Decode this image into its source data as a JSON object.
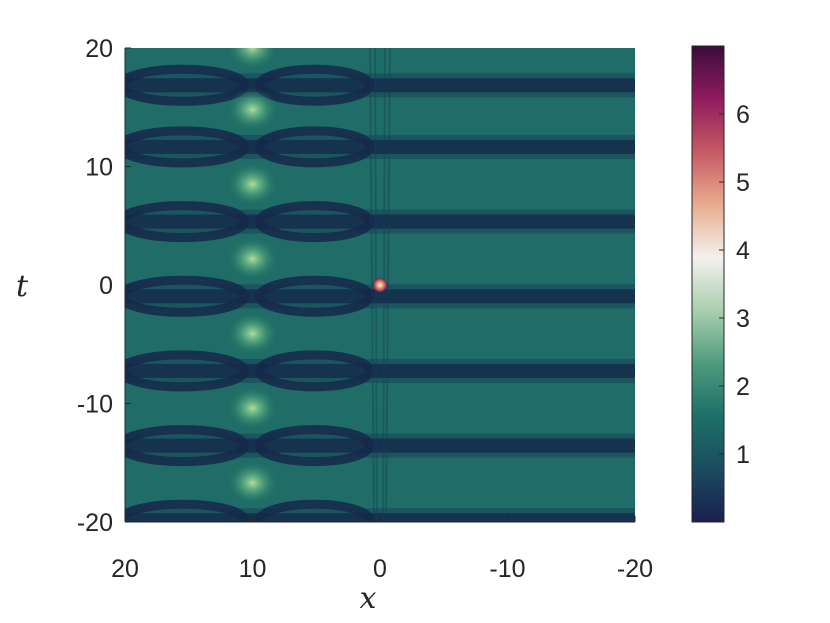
{
  "chart_data": {
    "type": "heatmap",
    "title": "",
    "xlabel": "x",
    "ylabel": "t",
    "xlim": [
      20,
      -20
    ],
    "ylim": [
      -20,
      20
    ],
    "x_reversed": true,
    "x_ticks": [
      20,
      10,
      0,
      -10,
      -20
    ],
    "x_tick_labels": [
      "20",
      "10",
      "0",
      "-10",
      "-20"
    ],
    "y_ticks": [
      20,
      10,
      0,
      -10,
      -20
    ],
    "y_tick_labels": [
      "20",
      "10",
      "0",
      "-10",
      "-20"
    ],
    "colorbar": {
      "range": [
        0,
        7
      ],
      "ticks": [
        1,
        2,
        3,
        4,
        5,
        6
      ],
      "tick_labels": [
        "1",
        "2",
        "3",
        "4",
        "5",
        "6"
      ],
      "colors": [
        "#1a1f4e",
        "#1b4b60",
        "#1d7068",
        "#4f9a7e",
        "#a9cfae",
        "#f3f1ee",
        "#e9ab8e",
        "#c65964",
        "#8f1b5e",
        "#3b0c3d"
      ]
    },
    "background_level": 1.1,
    "band_period": 6.3,
    "features": {
      "breather_line_x": 10,
      "peak_values": [
        {
          "x": 10,
          "t": 20,
          "value": 1.9
        },
        {
          "x": 10,
          "t": 14.8,
          "value": 1.9
        },
        {
          "x": 10,
          "t": 8.5,
          "value": 1.9
        },
        {
          "x": 10,
          "t": 2.2,
          "value": 1.9
        },
        {
          "x": 10,
          "t": -4.1,
          "value": 1.9
        },
        {
          "x": 10,
          "t": -10.4,
          "value": 1.9
        },
        {
          "x": 10,
          "t": -16.7,
          "value": 1.9
        }
      ],
      "rogue_peak": {
        "x": 0,
        "t": 0,
        "value": 6.9
      }
    }
  }
}
